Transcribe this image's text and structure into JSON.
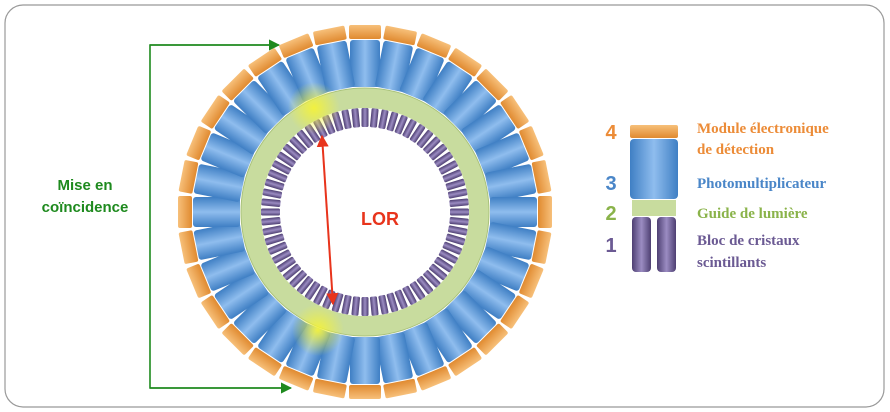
{
  "annotation": {
    "lines": [
      "Mise en",
      "coïncidence"
    ]
  },
  "lor": "LOR",
  "legend": [
    {
      "number": "4",
      "lines": [
        "Module électronique",
        "de détection"
      ]
    },
    {
      "number": "3",
      "lines": [
        "Photomultiplicateur"
      ]
    },
    {
      "number": "2",
      "lines": [
        "Guide de lumière"
      ]
    },
    {
      "number": "1",
      "lines": [
        "Bloc de cristaux",
        "scintillants"
      ]
    }
  ]
}
